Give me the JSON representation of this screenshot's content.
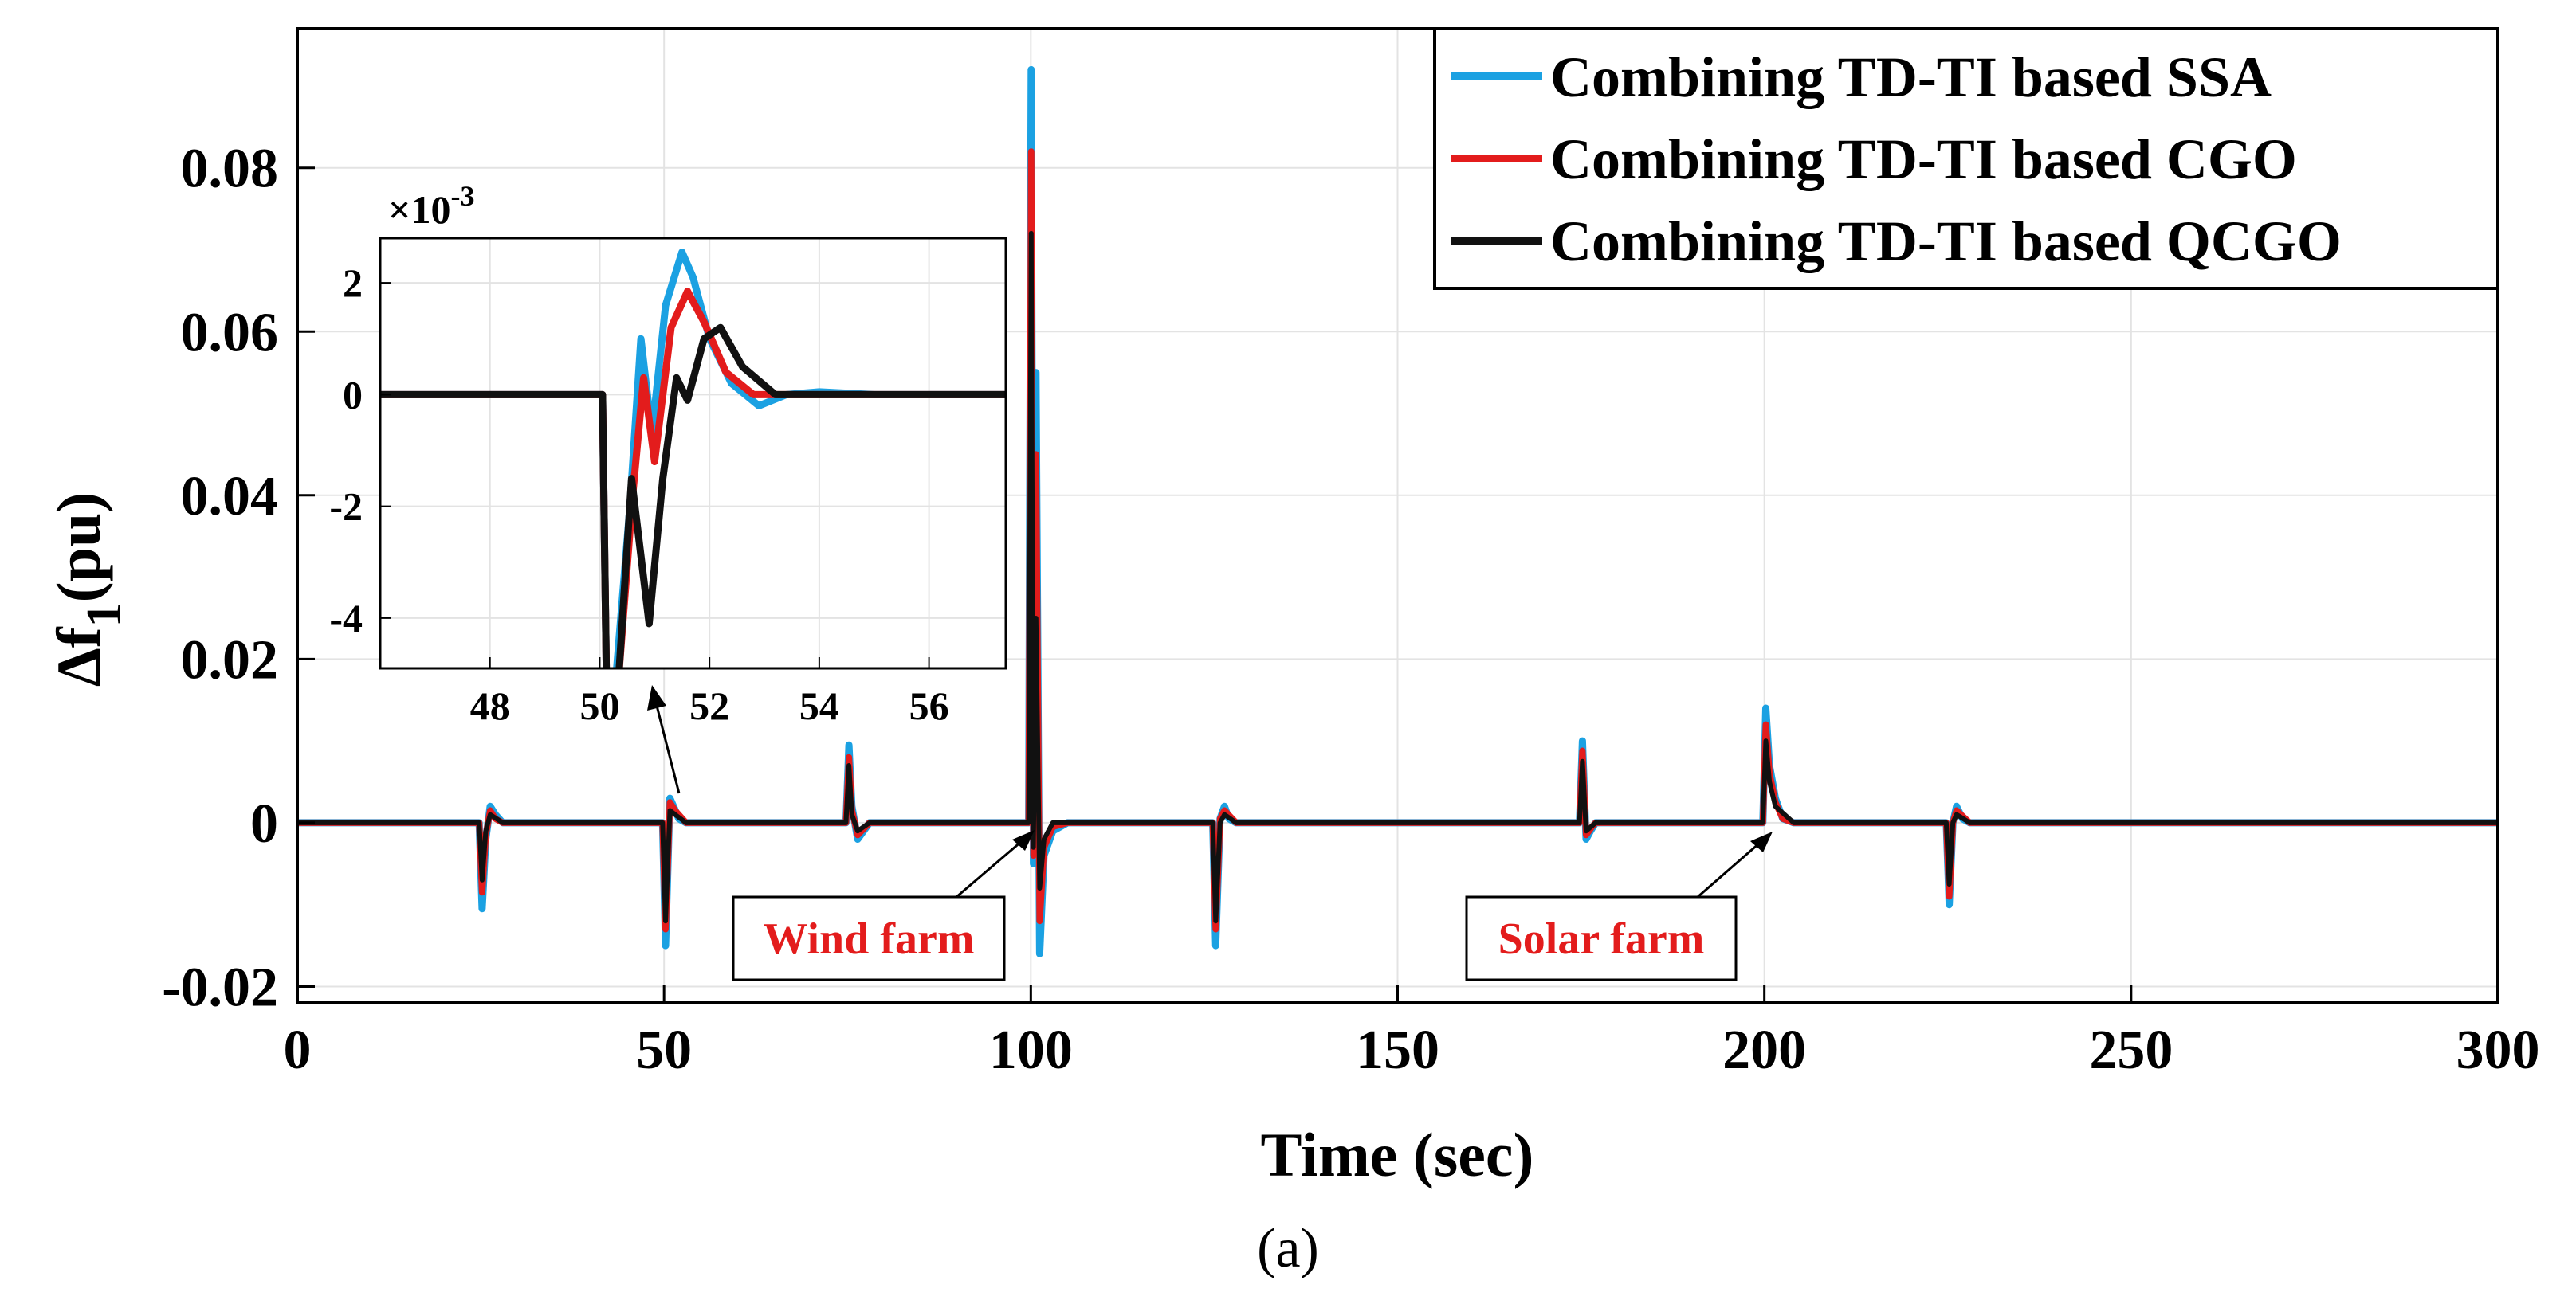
{
  "chart_data": {
    "type": "line",
    "title": "",
    "xlabel": "Time (sec)",
    "ylabel_main": "Δf",
    "ylabel_sub": "1",
    "ylabel_unit": "(pu)",
    "xlim": [
      0,
      300
    ],
    "ylim": [
      -0.022,
      0.097
    ],
    "x_ticks": [
      0,
      50,
      100,
      150,
      200,
      250,
      300
    ],
    "x_tick_labels": [
      "0",
      "50",
      "100",
      "150",
      "200",
      "250",
      "300"
    ],
    "y_ticks": [
      -0.02,
      0,
      0.02,
      0.04,
      0.06,
      0.08
    ],
    "y_tick_labels": [
      "-0.02",
      "0",
      "0.02",
      "0.04",
      "0.06",
      "0.08"
    ],
    "grid": true,
    "legend_position": "top-right",
    "series": [
      {
        "name": "Combining TD-TI based SSA",
        "color": "#1ba1e2",
        "points": [
          [
            0,
            0
          ],
          [
            24.8,
            0
          ],
          [
            25.2,
            -0.0105
          ],
          [
            25.7,
            -0.002
          ],
          [
            26.3,
            0.002
          ],
          [
            27,
            0.001
          ],
          [
            28,
            0
          ],
          [
            49.8,
            0
          ],
          [
            50.2,
            -0.015
          ],
          [
            50.8,
            0.003
          ],
          [
            51.3,
            0.002
          ],
          [
            52,
            0.0005
          ],
          [
            53,
            0
          ],
          [
            74.8,
            0
          ],
          [
            75.2,
            0.0095
          ],
          [
            75.6,
            0.002
          ],
          [
            76.4,
            -0.002
          ],
          [
            77.2,
            -0.001
          ],
          [
            78,
            0
          ],
          [
            99.7,
            0
          ],
          [
            100.05,
            0.092
          ],
          [
            100.35,
            -0.005
          ],
          [
            100.7,
            0.055
          ],
          [
            101.2,
            -0.016
          ],
          [
            101.8,
            -0.004
          ],
          [
            103,
            -0.001
          ],
          [
            105,
            0
          ],
          [
            124.8,
            0
          ],
          [
            125.2,
            -0.015
          ],
          [
            125.8,
            0.0005
          ],
          [
            126.4,
            0.002
          ],
          [
            127,
            0.0005
          ],
          [
            128,
            0
          ],
          [
            174.8,
            0
          ],
          [
            175.2,
            0.01
          ],
          [
            175.7,
            -0.002
          ],
          [
            176.3,
            -0.001
          ],
          [
            177,
            0
          ],
          [
            199.8,
            0
          ],
          [
            200.2,
            0.014
          ],
          [
            200.7,
            0.007
          ],
          [
            201.5,
            0.003
          ],
          [
            202.5,
            0.0005
          ],
          [
            204,
            0
          ],
          [
            224.8,
            0
          ],
          [
            225.2,
            -0.01
          ],
          [
            225.7,
            0
          ],
          [
            226.2,
            0.002
          ],
          [
            227,
            0.0005
          ],
          [
            228,
            0
          ],
          [
            300,
            0
          ]
        ]
      },
      {
        "name": "Combining TD-TI based CGO",
        "color": "#e31c1c",
        "points": [
          [
            0,
            0
          ],
          [
            24.8,
            0
          ],
          [
            25.2,
            -0.0085
          ],
          [
            25.7,
            -0.0015
          ],
          [
            26.3,
            0.0015
          ],
          [
            27,
            0.0005
          ],
          [
            28,
            0
          ],
          [
            49.8,
            0
          ],
          [
            50.2,
            -0.013
          ],
          [
            50.8,
            0.0025
          ],
          [
            51.5,
            0.0015
          ],
          [
            53,
            0
          ],
          [
            74.8,
            0
          ],
          [
            75.2,
            0.008
          ],
          [
            75.6,
            0.0015
          ],
          [
            76.4,
            -0.0015
          ],
          [
            78,
            0
          ],
          [
            99.7,
            0
          ],
          [
            100.05,
            0.082
          ],
          [
            100.35,
            -0.004
          ],
          [
            100.7,
            0.045
          ],
          [
            101.2,
            -0.012
          ],
          [
            101.8,
            -0.003
          ],
          [
            103,
            -0.0005
          ],
          [
            105,
            0
          ],
          [
            124.8,
            0
          ],
          [
            125.2,
            -0.013
          ],
          [
            125.8,
            0.0005
          ],
          [
            126.4,
            0.0015
          ],
          [
            128,
            0
          ],
          [
            174.8,
            0
          ],
          [
            175.2,
            0.0088
          ],
          [
            175.7,
            -0.0015
          ],
          [
            176.5,
            -0.0005
          ],
          [
            177,
            0
          ],
          [
            199.8,
            0
          ],
          [
            200.2,
            0.012
          ],
          [
            200.7,
            0.006
          ],
          [
            201.5,
            0.0025
          ],
          [
            202.5,
            0.0005
          ],
          [
            204,
            0
          ],
          [
            224.8,
            0
          ],
          [
            225.2,
            -0.009
          ],
          [
            225.7,
            0
          ],
          [
            226.2,
            0.0015
          ],
          [
            228,
            0
          ],
          [
            300,
            0
          ]
        ]
      },
      {
        "name": "Combining TD-TI based QCGO",
        "color": "#111111",
        "points": [
          [
            0,
            0
          ],
          [
            24.8,
            0
          ],
          [
            25.2,
            -0.007
          ],
          [
            25.7,
            -0.001
          ],
          [
            26.3,
            0.001
          ],
          [
            28,
            0
          ],
          [
            49.8,
            0
          ],
          [
            50.2,
            -0.012
          ],
          [
            50.8,
            0.0015
          ],
          [
            51.5,
            0.001
          ],
          [
            53,
            0
          ],
          [
            74.8,
            0
          ],
          [
            75.2,
            0.007
          ],
          [
            75.6,
            0.001
          ],
          [
            76.4,
            -0.001
          ],
          [
            78,
            0
          ],
          [
            99.7,
            0
          ],
          [
            100.05,
            0.072
          ],
          [
            100.35,
            -0.003
          ],
          [
            100.7,
            0.025
          ],
          [
            101.2,
            -0.008
          ],
          [
            101.8,
            -0.002
          ],
          [
            103,
            0
          ],
          [
            124.8,
            0
          ],
          [
            125.2,
            -0.012
          ],
          [
            125.8,
            0
          ],
          [
            126.4,
            0.001
          ],
          [
            128,
            0
          ],
          [
            174.8,
            0
          ],
          [
            175.2,
            0.0075
          ],
          [
            175.7,
            -0.001
          ],
          [
            177,
            0
          ],
          [
            199.8,
            0
          ],
          [
            200.2,
            0.01
          ],
          [
            200.7,
            0.005
          ],
          [
            201.5,
            0.002
          ],
          [
            204,
            0
          ],
          [
            224.8,
            0
          ],
          [
            225.2,
            -0.0075
          ],
          [
            225.7,
            0
          ],
          [
            226.2,
            0.001
          ],
          [
            228,
            0
          ],
          [
            300,
            0
          ]
        ]
      }
    ],
    "inset": {
      "xlim": [
        46,
        57.4
      ],
      "ylim": [
        -4.9,
        2.8
      ],
      "x_ticks": [
        48,
        50,
        52,
        54,
        56
      ],
      "x_tick_labels": [
        "48",
        "50",
        "52",
        "54",
        "56"
      ],
      "y_ticks": [
        -4,
        -2,
        0,
        2
      ],
      "y_tick_labels": [
        "-4",
        "-2",
        "0",
        "2"
      ],
      "multiplier_base": "×10",
      "multiplier_exp": "-3",
      "series": [
        {
          "name": "Combining TD-TI based SSA",
          "points": [
            [
              46,
              0
            ],
            [
              50.05,
              0
            ],
            [
              50.12,
              -5
            ],
            [
              50.3,
              -5
            ],
            [
              50.55,
              -2
            ],
            [
              50.75,
              1.0
            ],
            [
              50.95,
              -0.7
            ],
            [
              51.2,
              1.6
            ],
            [
              51.5,
              2.55
            ],
            [
              51.7,
              2.1
            ],
            [
              52.0,
              1.0
            ],
            [
              52.4,
              0.2
            ],
            [
              52.9,
              -0.2
            ],
            [
              53.4,
              0
            ],
            [
              54,
              0.05
            ],
            [
              55,
              0
            ],
            [
              57.4,
              0
            ]
          ]
        },
        {
          "name": "Combining TD-TI based CGO",
          "points": [
            [
              46,
              0
            ],
            [
              50.05,
              0
            ],
            [
              50.12,
              -5
            ],
            [
              50.35,
              -5
            ],
            [
              50.6,
              -1.8
            ],
            [
              50.8,
              0.3
            ],
            [
              51.0,
              -1.2
            ],
            [
              51.3,
              1.2
            ],
            [
              51.6,
              1.85
            ],
            [
              51.9,
              1.3
            ],
            [
              52.3,
              0.4
            ],
            [
              52.8,
              0
            ],
            [
              53.5,
              0
            ],
            [
              57.4,
              0
            ]
          ]
        },
        {
          "name": "Combining TD-TI based QCGO",
          "points": [
            [
              46,
              0
            ],
            [
              50.05,
              0
            ],
            [
              50.12,
              -5
            ],
            [
              50.35,
              -5
            ],
            [
              50.58,
              -1.5
            ],
            [
              50.9,
              -4.1
            ],
            [
              51.15,
              -1.5
            ],
            [
              51.4,
              0.3
            ],
            [
              51.6,
              -0.1
            ],
            [
              51.9,
              1.0
            ],
            [
              52.2,
              1.2
            ],
            [
              52.6,
              0.5
            ],
            [
              53.2,
              0
            ],
            [
              57.4,
              0
            ]
          ]
        }
      ]
    },
    "annotations": [
      {
        "text": "Wind farm",
        "arrow_to": [
          100,
          0
        ]
      },
      {
        "text": "Solar farm",
        "arrow_to": [
          200,
          0
        ]
      }
    ],
    "caption": "(a)"
  }
}
